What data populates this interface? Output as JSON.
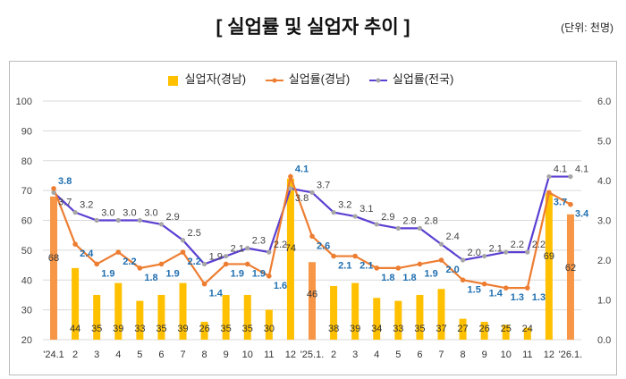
{
  "title": "[ 실업률 및 실업자 추이  ]",
  "unit": "(단위: 천명)",
  "chart_data": {
    "type": "bar+line",
    "title": "[ 실업률 및 실업자 추이  ]",
    "categories": [
      "'24.1",
      "2",
      "3",
      "4",
      "5",
      "6",
      "7",
      "8",
      "9",
      "10",
      "11",
      "12",
      "'25.1.",
      "2",
      "3",
      "4",
      "5",
      "6",
      "7",
      "8",
      "9",
      "10",
      "11",
      "12",
      "'26.1."
    ],
    "series": [
      {
        "name": "실업자(경남)",
        "type": "bar",
        "axis": "left",
        "color": "#FFC000",
        "jan_color": "#F79646",
        "values": [
          68,
          44,
          35,
          39,
          33,
          35,
          39,
          26,
          35,
          35,
          30,
          74,
          46,
          38,
          39,
          34,
          33,
          35,
          37,
          27,
          26,
          25,
          24,
          69,
          62
        ]
      },
      {
        "name": "실업률(경남)",
        "type": "line",
        "axis": "right",
        "color": "#ED7D31",
        "label_color": "#1F6FB0",
        "values": [
          3.8,
          2.4,
          1.9,
          2.2,
          1.8,
          1.9,
          2.2,
          1.4,
          1.9,
          1.9,
          1.6,
          4.1,
          2.6,
          2.1,
          2.1,
          1.8,
          1.8,
          1.9,
          2.0,
          1.5,
          1.4,
          1.3,
          1.3,
          3.7,
          3.4
        ]
      },
      {
        "name": "실업률(전국)",
        "type": "line",
        "axis": "right",
        "color": "#5B3FD1",
        "marker_color": "#A6A6A6",
        "values": [
          3.7,
          3.2,
          3.0,
          3.0,
          3.0,
          2.9,
          2.5,
          1.9,
          2.1,
          2.3,
          2.2,
          3.8,
          3.7,
          3.2,
          3.1,
          2.9,
          2.8,
          2.8,
          2.4,
          2.0,
          2.1,
          2.2,
          2.2,
          4.1,
          4.1
        ]
      }
    ],
    "left_axis": {
      "range": [
        20,
        100
      ],
      "ticks": [
        "20",
        "30",
        "40",
        "50",
        "60",
        "70",
        "80",
        "90",
        "100"
      ]
    },
    "right_axis": {
      "range": [
        0,
        6
      ],
      "ticks": [
        "0.0",
        "1.0",
        "2.0",
        "3.0",
        "4.0",
        "5.0",
        "6.0"
      ]
    },
    "grid": true,
    "legend": "top"
  }
}
